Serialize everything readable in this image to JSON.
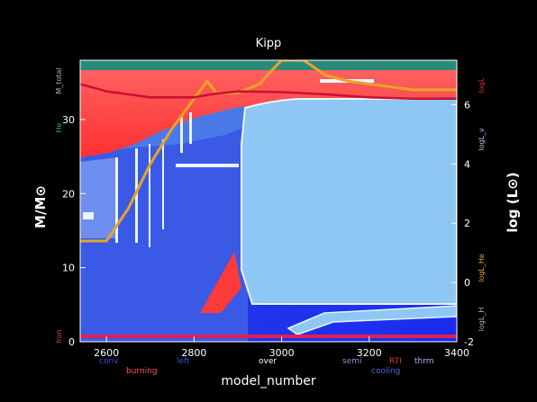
{
  "chart_data": {
    "type": "area",
    "title": "Kipp",
    "xlabel": "model_number",
    "ylabel_left": "M/M⊙",
    "ylabel_right": "log (L⊙)",
    "xlim": [
      2540,
      3400
    ],
    "ylim_left": [
      0,
      38
    ],
    "ylim_right": [
      -2,
      7.5
    ],
    "xticks": [
      2600,
      2800,
      3000,
      3200,
      3400
    ],
    "yticks_left": [
      0,
      10,
      20,
      30
    ],
    "yticks_right": [
      -2,
      0,
      2,
      4,
      6
    ],
    "grid": false,
    "side_labels": {
      "left_total": "M_total",
      "left_he": "He",
      "left_iron": "Iron",
      "right_logl": "logL",
      "right_lognu": "logL_ν",
      "right_loghe": "logL_He",
      "right_logh": "logL_H"
    },
    "legend": [
      {
        "label": "conv",
        "color": "#3a4ae0"
      },
      {
        "label": "burning",
        "color": "#ff5050"
      },
      {
        "label": "left",
        "color": "#1b5fd8"
      },
      {
        "label": "over",
        "color": "#ffffff"
      },
      {
        "label": "semi",
        "color": "#7aa0c8"
      },
      {
        "label": "RTI",
        "color": "#e03030"
      },
      {
        "label": "cooling",
        "color": "#5a6ad0"
      },
      {
        "label": "thrm",
        "color": "#b0b0ff"
      }
    ],
    "series": [
      {
        "name": "logL",
        "axis": "right",
        "color": "#e6a428",
        "x": [
          2540,
          2600,
          2650,
          2700,
          2750,
          2800,
          2830,
          2850,
          2900,
          2950,
          2980,
          3000,
          3050,
          3100,
          3150,
          3200,
          3250,
          3300,
          3350,
          3400
        ],
        "y": [
          1.4,
          1.4,
          2.5,
          4.0,
          5.2,
          6.2,
          6.8,
          6.4,
          6.4,
          6.7,
          7.2,
          7.5,
          7.5,
          7.0,
          6.8,
          6.7,
          6.6,
          6.5,
          6.5,
          6.5
        ]
      },
      {
        "name": "logL_H",
        "axis": "left",
        "color": "#c81032",
        "x": [
          2540,
          2600,
          2700,
          2800,
          2850,
          2900,
          3000,
          3100,
          3200,
          3300,
          3400
        ],
        "y": [
          34.8,
          33.8,
          33.0,
          33.0,
          33.5,
          33.8,
          33.7,
          33.4,
          33.0,
          32.8,
          32.8
        ]
      }
    ],
    "regions": [
      {
        "name": "outer envelope",
        "kind": "burning",
        "color": "#ff4a4a"
      },
      {
        "name": "convective core",
        "kind": "conv",
        "color": "#5aa0ea"
      },
      {
        "name": "lower envelope",
        "kind": "conv",
        "color": "#2e4ee0"
      }
    ]
  }
}
